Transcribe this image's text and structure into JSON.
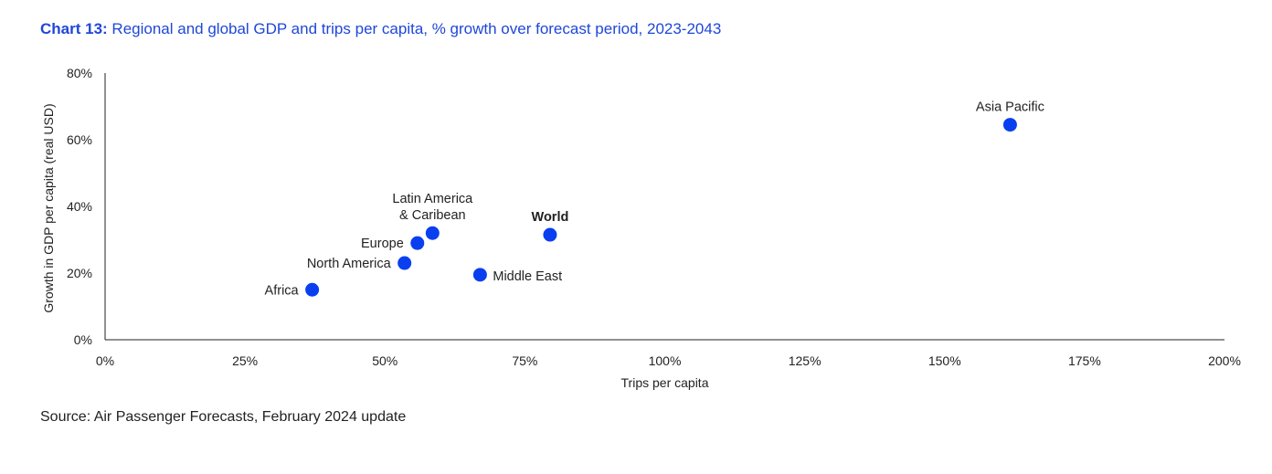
{
  "title_prefix": "Chart 13:",
  "title_text": "Regional and global GDP and trips per capita, % growth over forecast period, 2023-2043",
  "source": "Source: Air Passenger Forecasts, February 2024 update",
  "colors": {
    "title": "#1f47d8",
    "point": "#0a3ff0",
    "axis": "#222222"
  },
  "chart_data": {
    "type": "scatter",
    "xlabel": "Trips per capita",
    "ylabel": "Growth in GDP per capita (real USD)",
    "xlim": [
      0,
      200
    ],
    "ylim": [
      0,
      80
    ],
    "xticks": [
      0,
      25,
      50,
      75,
      100,
      125,
      150,
      175,
      200
    ],
    "yticks": [
      0,
      20,
      40,
      60,
      80
    ],
    "xtick_labels": [
      "0%",
      "25%",
      "50%",
      "75%",
      "100%",
      "125%",
      "150%",
      "175%",
      "200%"
    ],
    "ytick_labels": [
      "0%",
      "20%",
      "40%",
      "60%",
      "80%"
    ],
    "grid": false,
    "points": [
      {
        "label": "Asia Pacific",
        "x": 161.7,
        "y": 64.5,
        "label_pos": "above",
        "bold": false
      },
      {
        "label": "World",
        "x": 79.5,
        "y": 31.5,
        "label_pos": "above",
        "bold": true
      },
      {
        "label_lines": [
          "Latin America",
          "& Caribean"
        ],
        "x": 58.5,
        "y": 32.0,
        "label_pos": "above",
        "bold": false
      },
      {
        "label": "Europe",
        "x": 55.8,
        "y": 29.0,
        "label_pos": "left",
        "bold": false
      },
      {
        "label": "North America",
        "x": 53.5,
        "y": 23.0,
        "label_pos": "left",
        "bold": false
      },
      {
        "label": "Middle East",
        "x": 67.0,
        "y": 19.5,
        "label_pos": "right",
        "bold": false
      },
      {
        "label": "Africa",
        "x": 37.0,
        "y": 15.0,
        "label_pos": "left",
        "bold": false
      }
    ]
  }
}
